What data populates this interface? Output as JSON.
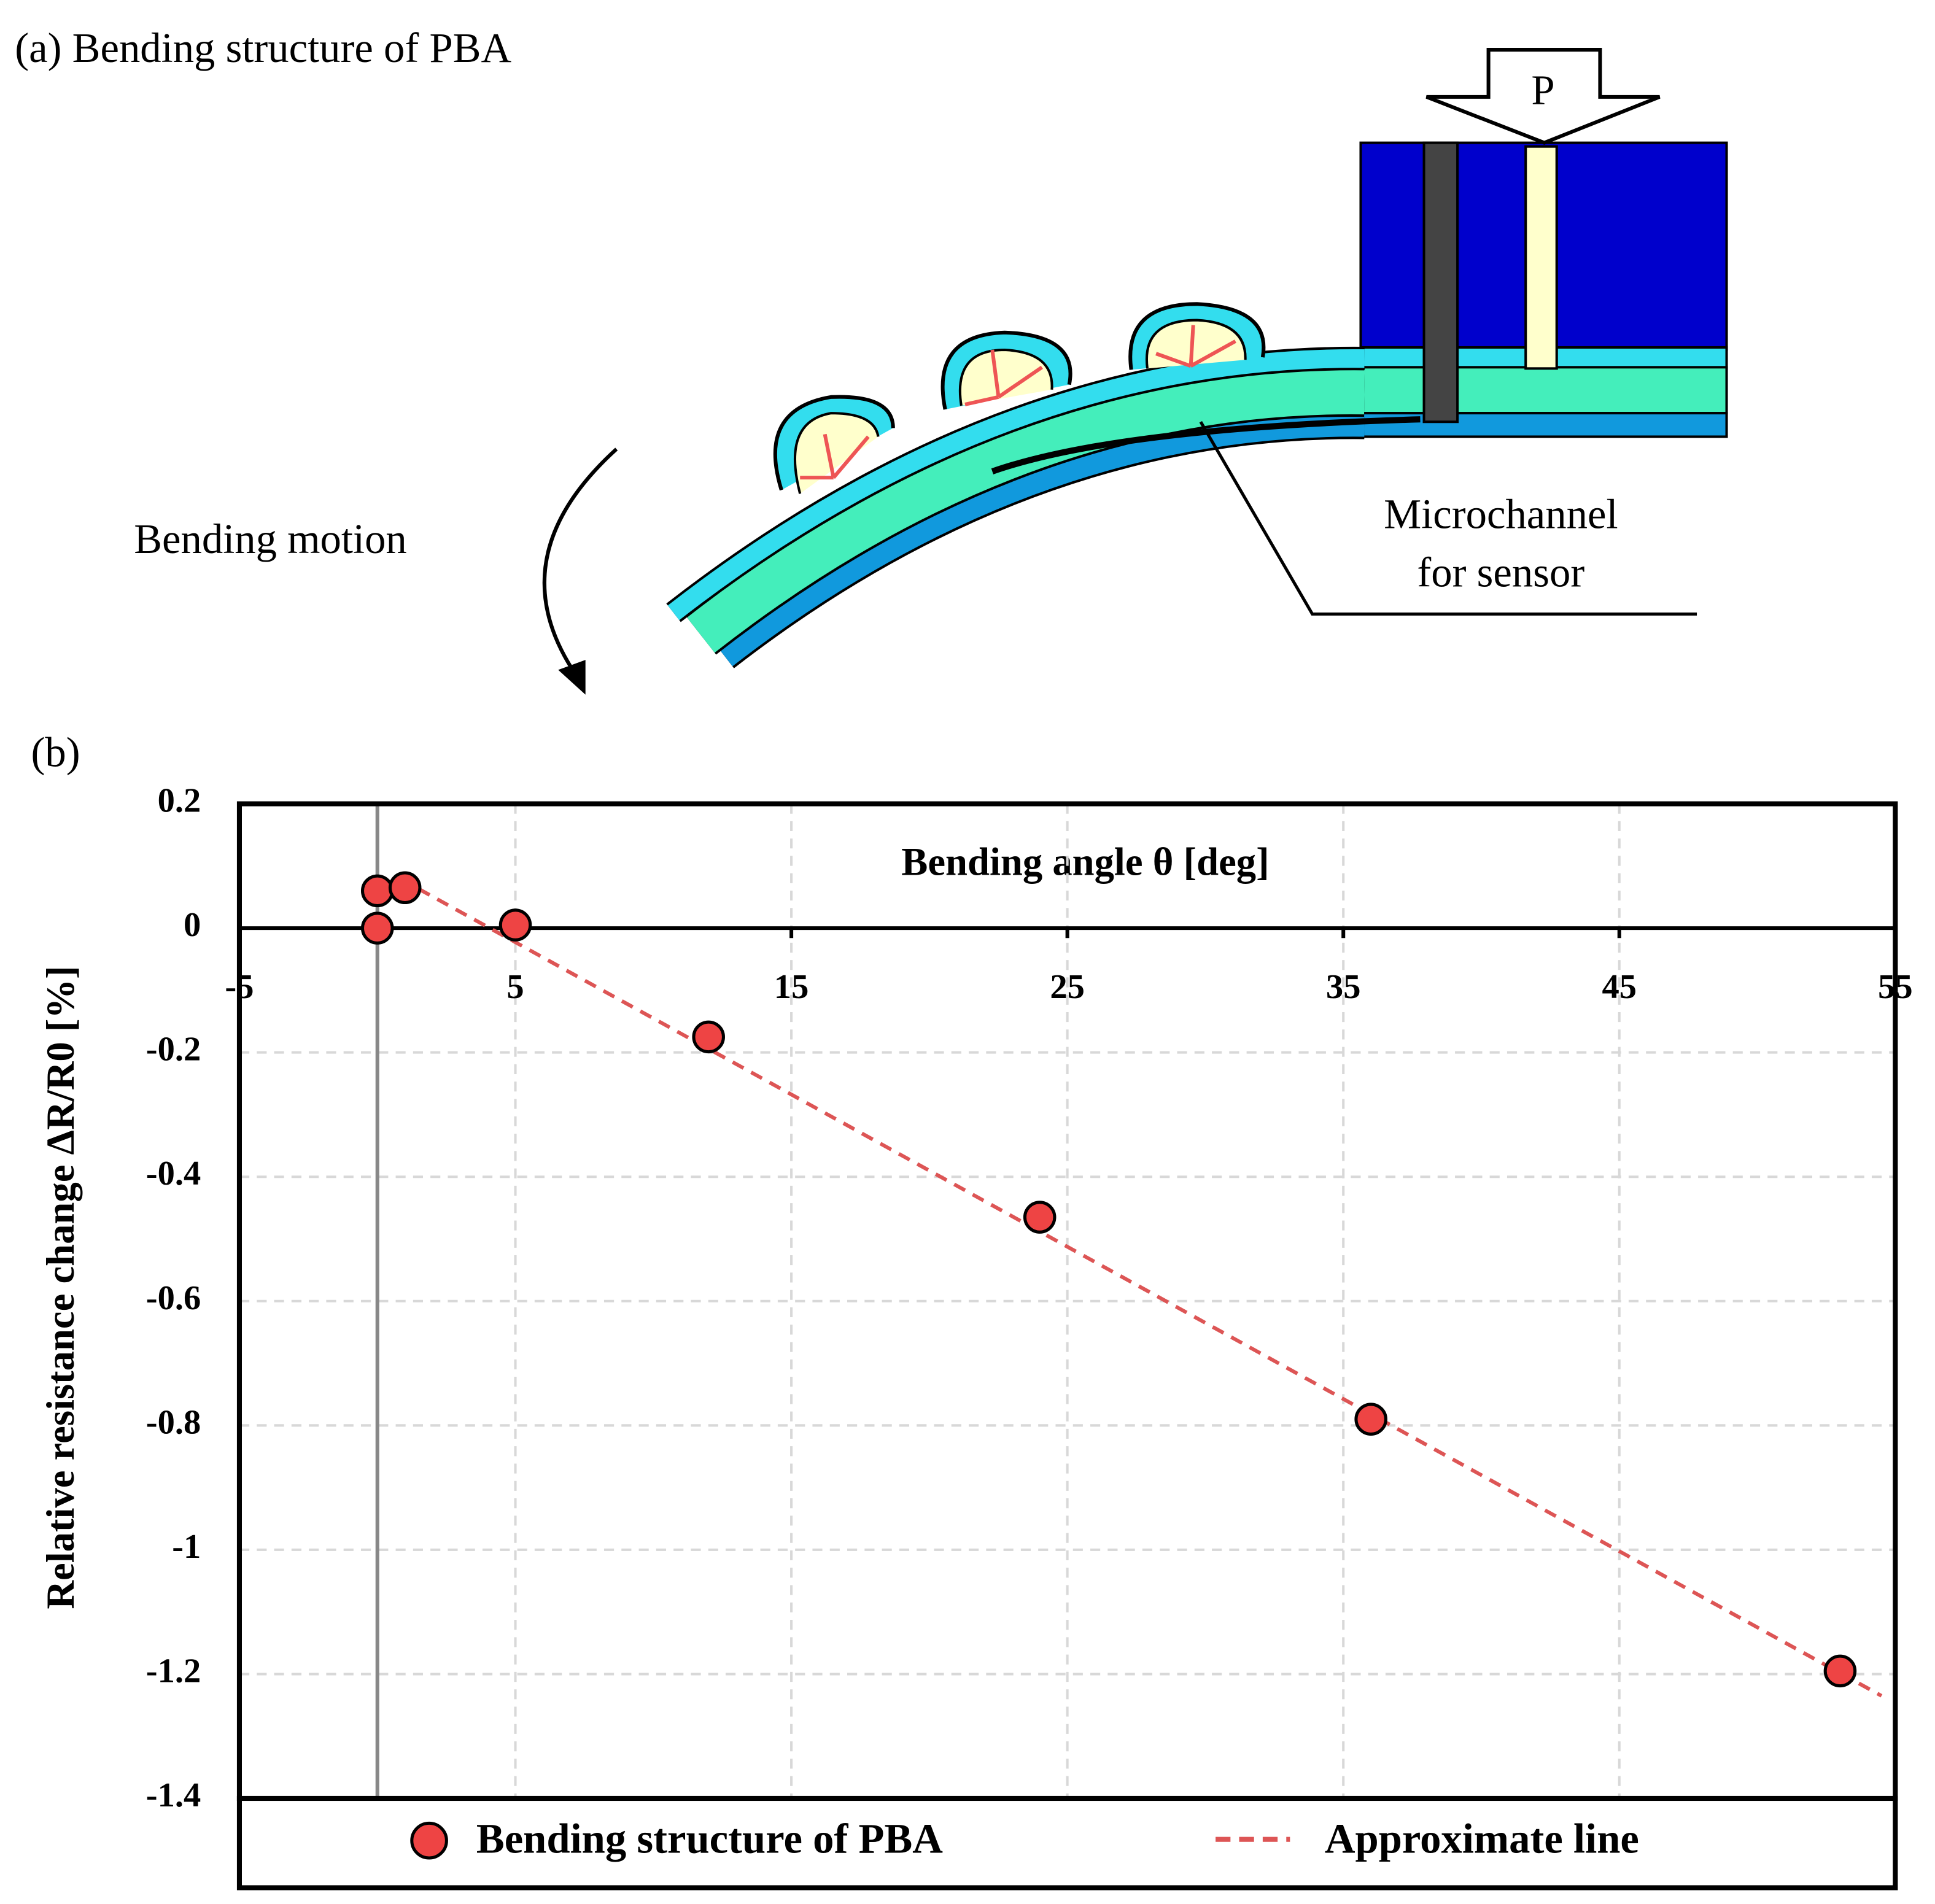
{
  "panel_a": {
    "label": "(a) Bending structure of PBA",
    "pressure_label": "P",
    "motion_label": "Bending motion",
    "microchannel_label": [
      "Microchannel",
      "for sensor"
    ]
  },
  "chart_data": {
    "type": "scatter",
    "panel_label": "(b)",
    "x_label": "Bending angle θ [deg]",
    "y_label": "Relative resistance change ΔR/R0 [%]",
    "series": [
      {
        "name": "Bending structure of PBA",
        "color": "#ee4444",
        "mode": "markers",
        "x": [
          0,
          0,
          1,
          5,
          12,
          24,
          36,
          53
        ],
        "values": [
          0.06,
          0,
          0.065,
          0.005,
          -0.175,
          -0.465,
          -0.79,
          -1.195
        ]
      },
      {
        "name": "Approximate line",
        "color": "#dd5555",
        "mode": "dashed-line",
        "x": [
          1.5,
          54.5
        ],
        "values": [
          0.063,
          -1.235
        ]
      }
    ],
    "xlim": [
      -5,
      55
    ],
    "xticks": [
      -5,
      5,
      15,
      25,
      35,
      45,
      55
    ],
    "ylim": [
      -1.4,
      0.2
    ],
    "yticks": [
      0.2,
      0,
      -0.2,
      -0.4,
      -0.6,
      -0.8,
      -1,
      -1.2,
      -1.4
    ],
    "grid": true,
    "legend": "bottom"
  }
}
